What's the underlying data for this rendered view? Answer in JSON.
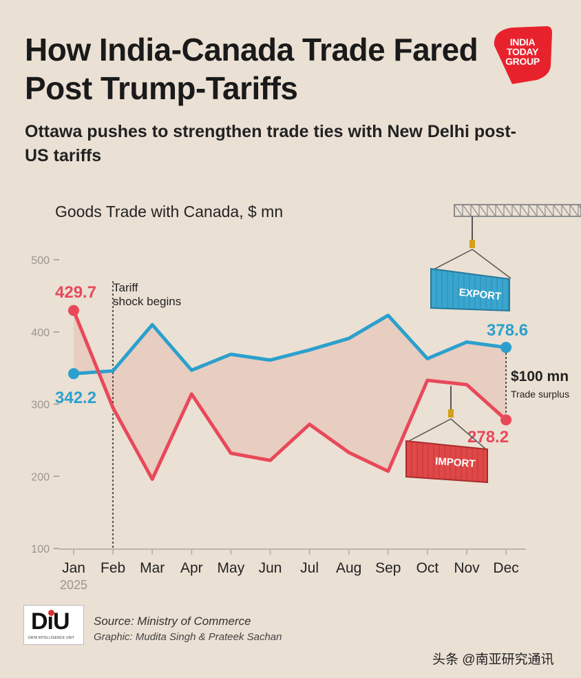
{
  "header": {
    "title": "How India-Canada Trade Fared Post Trump-Tariffs",
    "subtitle": "Ottawa pushes to strengthen trade ties with New Delhi post-US tariffs",
    "logo_text": [
      "INDIA",
      "TODAY",
      "GROUP"
    ]
  },
  "chart_label": "Goods Trade with Canada, $ mn",
  "chart_data": {
    "type": "line",
    "title": "Goods Trade with Canada, $ mn",
    "categories": [
      "Jan",
      "Feb",
      "Mar",
      "Apr",
      "May",
      "Jun",
      "Jul",
      "Aug",
      "Sep",
      "Oct",
      "Nov",
      "Dec"
    ],
    "x_sublabel": "2025",
    "ylim": [
      100,
      500
    ],
    "yticks": [
      100,
      200,
      300,
      400,
      500
    ],
    "series": [
      {
        "name": "Export",
        "color": "#2ba0cc",
        "values": [
          342.2,
          346,
          410,
          347,
          369,
          361,
          375,
          391,
          423,
          363,
          386,
          378.6
        ]
      },
      {
        "name": "Import",
        "color": "#e8495a",
        "values": [
          429.7,
          295,
          196,
          314,
          232,
          222,
          272,
          233,
          207,
          333,
          327,
          278.2
        ]
      }
    ],
    "labels": {
      "import_start": "429.7",
      "export_start": "342.2",
      "export_end": "378.6",
      "import_end": "278.2"
    },
    "annotation": {
      "line1": "Tariff",
      "line2": "shock begins"
    },
    "surplus": {
      "value": "$100 mn",
      "label": "Trade surplus"
    },
    "containers": {
      "export": "EXPORT",
      "import": "IMPORT"
    }
  },
  "footer": {
    "diu_logo": "DiU",
    "diu_sub": "DATA INTELLIGENCE UNIT",
    "source": "Source: Ministry of Commerce",
    "graphic": "Graphic: Mudita Singh & Prateek Sachan",
    "watermark": "头条 @南亚研究通讯"
  },
  "colors": {
    "background": "#ebe0d4",
    "export": "#2ba0cc",
    "import": "#e8495a",
    "fill": "#e7c9bd",
    "logo": "#e8222d"
  }
}
